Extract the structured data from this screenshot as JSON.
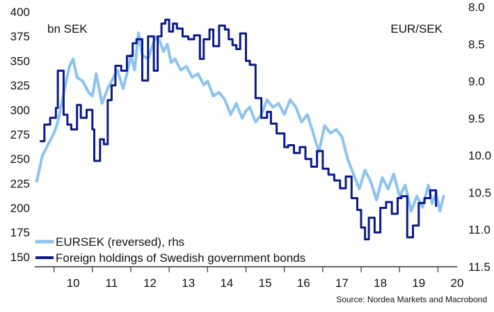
{
  "chart_data": {
    "type": "line",
    "left_unit": "bn SEK",
    "right_unit": "EUR/SEK",
    "source": "Source: Nordea Markets and Macrobond",
    "x_tick_labels": [
      "10",
      "11",
      "12",
      "13",
      "14",
      "15",
      "16",
      "17",
      "18",
      "19",
      "20"
    ],
    "x_range": [
      2009.5,
      2020.5
    ],
    "left_axis": {
      "ylim": [
        140,
        405
      ],
      "ticks": [
        400,
        375,
        350,
        325,
        300,
        275,
        250,
        225,
        200,
        175,
        150
      ]
    },
    "right_axis": {
      "ylim": [
        8.0,
        11.5
      ],
      "reversed": true,
      "ticks": [
        "8.0",
        "8.5",
        "9.0",
        "9.5",
        "10.0",
        "10.5",
        "11.0",
        "11.5"
      ],
      "tick_values": [
        8.0,
        8.5,
        9.0,
        9.5,
        10.0,
        10.5,
        11.0,
        11.5
      ]
    },
    "legend": {
      "position": "bottom-left"
    },
    "grid": false,
    "series": [
      {
        "name": "EURSEK (reversed), rhs",
        "axis": "right",
        "color": "#8cc3f0",
        "x": [
          2009.55,
          2009.7,
          2009.85,
          2010.0,
          2010.1,
          2010.2,
          2010.3,
          2010.4,
          2010.5,
          2010.6,
          2010.75,
          2010.9,
          2011.0,
          2011.1,
          2011.25,
          2011.4,
          2011.55,
          2011.65,
          2011.8,
          2011.9,
          2012.0,
          2012.1,
          2012.2,
          2012.3,
          2012.45,
          2012.55,
          2012.65,
          2012.75,
          2012.85,
          2012.95,
          2013.05,
          2013.15,
          2013.3,
          2013.45,
          2013.6,
          2013.75,
          2013.9,
          2014.0,
          2014.15,
          2014.3,
          2014.45,
          2014.6,
          2014.75,
          2014.9,
          2015.0,
          2015.1,
          2015.25,
          2015.4,
          2015.55,
          2015.7,
          2015.85,
          2016.0,
          2016.15,
          2016.3,
          2016.45,
          2016.6,
          2016.75,
          2016.9,
          2017.05,
          2017.2,
          2017.35,
          2017.5,
          2017.65,
          2017.8,
          2017.95,
          2018.1,
          2018.25,
          2018.4,
          2018.55,
          2018.7,
          2018.85,
          2019.0,
          2019.15,
          2019.3,
          2019.45,
          2019.6,
          2019.75,
          2019.85,
          2019.95,
          2020.05,
          2020.15
        ],
        "y": [
          10.35,
          10.0,
          9.85,
          9.7,
          9.55,
          9.3,
          9.05,
          8.8,
          8.7,
          8.95,
          9.0,
          9.15,
          9.2,
          8.9,
          9.3,
          9.1,
          8.95,
          8.85,
          9.1,
          8.9,
          8.65,
          8.85,
          8.35,
          8.65,
          8.7,
          8.55,
          8.4,
          8.45,
          8.6,
          8.5,
          8.75,
          8.7,
          8.85,
          8.8,
          8.95,
          8.9,
          9.05,
          9.0,
          9.2,
          9.15,
          9.25,
          9.45,
          9.3,
          9.5,
          9.4,
          9.35,
          9.55,
          9.45,
          9.25,
          9.35,
          9.3,
          9.45,
          9.25,
          9.35,
          9.55,
          9.45,
          9.7,
          9.95,
          9.6,
          9.7,
          9.65,
          9.75,
          10.05,
          10.25,
          10.45,
          10.2,
          10.35,
          10.6,
          10.3,
          10.45,
          10.25,
          10.55,
          10.4,
          10.75,
          10.55,
          10.7,
          10.4,
          10.65,
          10.5,
          10.75,
          10.55
        ]
      },
      {
        "name": "Foreign holdings of Swedish government bonds",
        "axis": "left",
        "color": "#0a1a8c",
        "step": true,
        "x": [
          2009.65,
          2009.75,
          2009.9,
          2010.05,
          2010.1,
          2010.25,
          2010.35,
          2010.45,
          2010.6,
          2010.7,
          2010.85,
          2011.0,
          2011.05,
          2011.2,
          2011.3,
          2011.4,
          2011.5,
          2011.6,
          2011.75,
          2011.9,
          2012.05,
          2012.15,
          2012.3,
          2012.45,
          2012.6,
          2012.7,
          2012.8,
          2012.9,
          2013.0,
          2013.1,
          2013.2,
          2013.35,
          2013.5,
          2013.65,
          2013.8,
          2013.9,
          2014.05,
          2014.15,
          2014.3,
          2014.45,
          2014.55,
          2014.65,
          2014.75,
          2014.85,
          2015.0,
          2015.1,
          2015.25,
          2015.4,
          2015.55,
          2015.65,
          2015.8,
          2016.0,
          2016.1,
          2016.25,
          2016.4,
          2016.55,
          2016.7,
          2016.85,
          2017.0,
          2017.15,
          2017.3,
          2017.45,
          2017.6,
          2017.75,
          2017.9,
          2018.0,
          2018.1,
          2018.2,
          2018.35,
          2018.5,
          2018.65,
          2018.8,
          2018.95,
          2019.05,
          2019.2,
          2019.35,
          2019.5,
          2019.65,
          2019.8,
          2019.95
        ],
        "y": [
          268,
          285,
          292,
          302,
          340,
          295,
          285,
          280,
          305,
          292,
          300,
          280,
          248,
          270,
          265,
          310,
          325,
          345,
          340,
          355,
          368,
          372,
          330,
          375,
          340,
          375,
          388,
          392,
          380,
          388,
          383,
          375,
          372,
          376,
          352,
          372,
          382,
          365,
          386,
          382,
          372,
          366,
          362,
          378,
          350,
          346,
          312,
          292,
          298,
          286,
          276,
          262,
          264,
          256,
          262,
          250,
          242,
          258,
          240,
          234,
          228,
          220,
          232,
          210,
          198,
          180,
          168,
          190,
          175,
          200,
          206,
          194,
          210,
          212,
          170,
          182,
          205,
          210,
          218,
          202
        ]
      }
    ]
  }
}
